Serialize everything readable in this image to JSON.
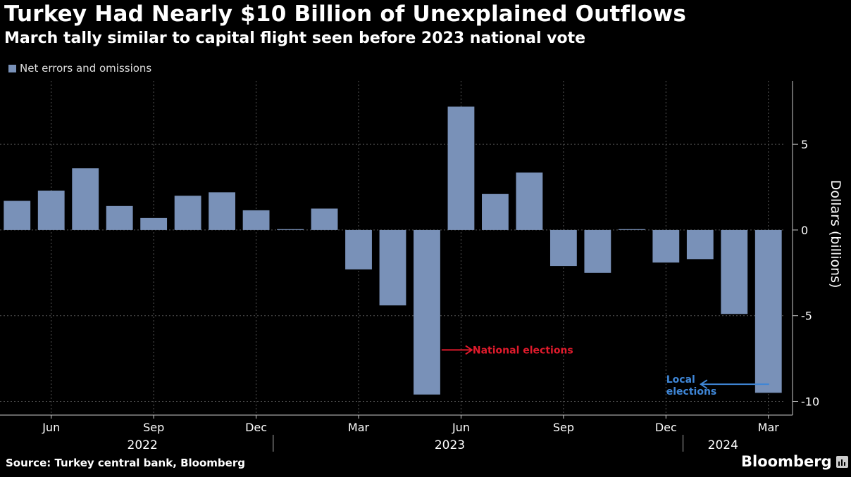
{
  "title": "Turkey Had Nearly $10 Billion of Unexplained Outflows",
  "subtitle": "March tally similar to capital flight seen before 2023 national vote",
  "source": "Source: Turkey central bank, Bloomberg",
  "brand": "Bloomberg",
  "colors": {
    "bar": "#7991b8",
    "red_annotation": "#e01b2c",
    "blue_annotation": "#3f86d6"
  },
  "chart_data": {
    "type": "bar",
    "legend": [
      "Net errors and omissions"
    ],
    "ylabel": "Dollars (billions)",
    "ylim": [
      -10.8,
      8.7
    ],
    "yticks": [
      5,
      0,
      -5,
      -10
    ],
    "ytick_labels": [
      "5",
      "0",
      "-5",
      "-10"
    ],
    "categories": [
      "2022-05",
      "2022-06",
      "2022-07",
      "2022-08",
      "2022-09",
      "2022-10",
      "2022-11",
      "2022-12",
      "2023-01",
      "2023-02",
      "2023-03",
      "2023-04",
      "2023-05",
      "2023-06",
      "2023-07",
      "2023-08",
      "2023-09",
      "2023-10",
      "2023-11",
      "2023-12",
      "2024-01",
      "2024-02",
      "2024-03"
    ],
    "series": [
      {
        "name": "Net errors and omissions",
        "values": [
          1.7,
          2.3,
          3.6,
          1.4,
          0.7,
          2.0,
          2.2,
          1.15,
          0.05,
          1.25,
          -2.3,
          -4.4,
          -9.6,
          7.2,
          2.1,
          3.35,
          -2.1,
          -2.5,
          0.05,
          -1.9,
          -1.7,
          -4.9,
          -9.5
        ]
      }
    ],
    "x_tick_labels": [
      {
        "category": "2022-06",
        "label": "Jun"
      },
      {
        "category": "2022-09",
        "label": "Sep"
      },
      {
        "category": "2022-12",
        "label": "Dec"
      },
      {
        "category": "2023-03",
        "label": "Mar"
      },
      {
        "category": "2023-06",
        "label": "Jun"
      },
      {
        "category": "2023-09",
        "label": "Sep"
      },
      {
        "category": "2023-12",
        "label": "Dec"
      },
      {
        "category": "2024-03",
        "label": "Mar"
      }
    ],
    "year_labels": [
      {
        "category": "2022-09",
        "label": "2022"
      },
      {
        "category": "2023-06",
        "label": "2023"
      },
      {
        "category": "2024-02",
        "label": "2024"
      }
    ],
    "annotations": [
      {
        "text": "National elections",
        "category": "2023-05",
        "color": "red"
      },
      {
        "text": "Local\nelections",
        "category": "2024-03",
        "color": "blue"
      }
    ]
  }
}
